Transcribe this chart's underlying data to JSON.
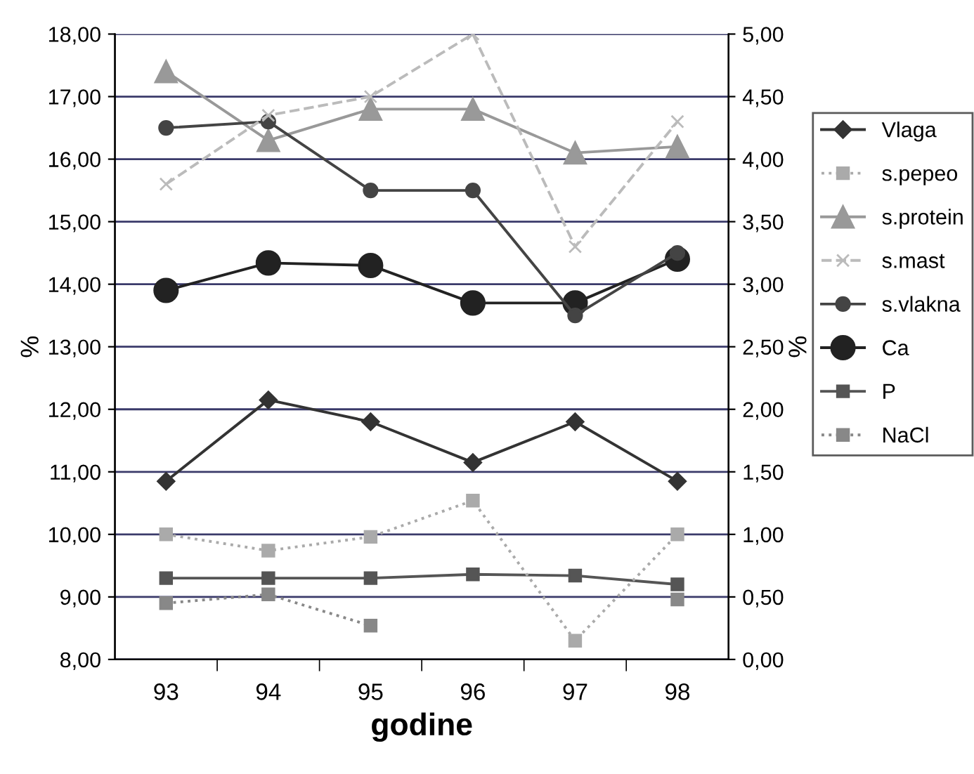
{
  "chart_data": {
    "type": "line",
    "xlabel": "godine",
    "ylabel": "%",
    "y2label": "%",
    "categories": [
      "93",
      "94",
      "95",
      "96",
      "97",
      "98"
    ],
    "series": [
      {
        "name": "Vlaga",
        "color": "#333333",
        "marker": "diamond",
        "line_style": "solid",
        "values": [
          10.85,
          12.15,
          11.8,
          11.15,
          11.8,
          10.85
        ]
      },
      {
        "name": "s.pepeo",
        "color": "#aaaaaa",
        "marker": "square",
        "line_style": "dotted",
        "axis": "y2",
        "values": [
          1.0,
          0.87,
          0.98,
          1.27,
          0.15,
          1.0
        ]
      },
      {
        "name": "s.protein",
        "color": "#999999",
        "marker": "triangle",
        "line_style": "solid",
        "values": [
          17.4,
          16.3,
          16.8,
          16.8,
          16.1,
          16.2
        ]
      },
      {
        "name": "s.mast",
        "color": "#bbbbbb",
        "marker": "cross",
        "line_style": "dashed",
        "axis": "y2",
        "values": [
          3.8,
          4.35,
          4.5,
          5.0,
          3.3,
          4.3
        ]
      },
      {
        "name": "s.vlakna",
        "color": "#444444",
        "marker": "circle",
        "line_style": "solid",
        "axis": "y2",
        "values": [
          4.25,
          4.3,
          3.75,
          3.75,
          2.75,
          3.25
        ]
      },
      {
        "name": "Ca",
        "color": "#222222",
        "marker": "circle",
        "line_style": "solid",
        "axis": "y2",
        "values": [
          2.95,
          3.17,
          3.15,
          2.85,
          2.85,
          3.2
        ]
      },
      {
        "name": "P",
        "color": "#555555",
        "marker": "square",
        "line_style": "solid",
        "axis": "y2",
        "values": [
          0.65,
          0.65,
          0.65,
          0.68,
          0.67,
          0.6
        ]
      },
      {
        "name": "NaCl",
        "color": "#888888",
        "marker": "square",
        "line_style": "dotted",
        "axis": "y2",
        "values": [
          0.45,
          0.52,
          0.27,
          null,
          null,
          0.48
        ]
      }
    ],
    "ylim": [
      8,
      18
    ],
    "yticks": [
      {
        "value": 8,
        "label": "8,00"
      },
      {
        "value": 9,
        "label": "9,00"
      },
      {
        "value": 10,
        "label": "10,00"
      },
      {
        "value": 11,
        "label": "11,00"
      },
      {
        "value": 12,
        "label": "12,00"
      },
      {
        "value": 13,
        "label": "13,00"
      },
      {
        "value": 14,
        "label": "14,00"
      },
      {
        "value": 15,
        "label": "15,00"
      },
      {
        "value": 16,
        "label": "16,00"
      },
      {
        "value": 17,
        "label": "17,00"
      },
      {
        "value": 18,
        "label": "18,00"
      }
    ],
    "y2lim": [
      0,
      5
    ],
    "y2ticks": [
      {
        "value": 0,
        "label": "0,00"
      },
      {
        "value": 0.5,
        "label": "0,50"
      },
      {
        "value": 1,
        "label": "1,00"
      },
      {
        "value": 1.5,
        "label": "1,50"
      },
      {
        "value": 2,
        "label": "2,00"
      },
      {
        "value": 2.5,
        "label": "2,50"
      },
      {
        "value": 3,
        "label": "3,00"
      },
      {
        "value": 3.5,
        "label": "3,50"
      },
      {
        "value": 4,
        "label": "4,00"
      },
      {
        "value": 4.5,
        "label": "4,50"
      },
      {
        "value": 5,
        "label": "5,00"
      }
    ],
    "grid": "y",
    "legend": "right"
  }
}
